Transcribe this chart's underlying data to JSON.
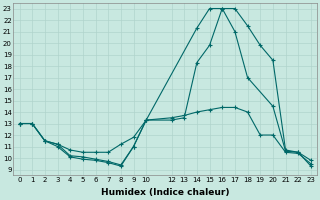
{
  "xlabel": "Humidex (Indice chaleur)",
  "background_color": "#c8e8e0",
  "grid_color": "#b0d4cc",
  "line_color": "#006868",
  "xlim": [
    -0.5,
    23.5
  ],
  "ylim": [
    8.5,
    23.5
  ],
  "yticks": [
    9,
    10,
    11,
    12,
    13,
    14,
    15,
    16,
    17,
    18,
    19,
    20,
    21,
    22,
    23
  ],
  "xtick_vals": [
    0,
    1,
    2,
    3,
    4,
    5,
    6,
    7,
    8,
    9,
    10,
    12,
    13,
    14,
    15,
    16,
    17,
    18,
    19,
    20,
    21,
    22,
    23
  ],
  "xtick_labels": [
    "0",
    "1",
    "2",
    "3",
    "4",
    "5",
    "6",
    "7",
    "8",
    "9",
    "10",
    "12",
    "13",
    "14",
    "15",
    "16",
    "17",
    "18",
    "19",
    "20",
    "21",
    "22",
    "23"
  ],
  "series": {
    "line1_peak": {
      "x": [
        0,
        1,
        2,
        3,
        4,
        5,
        6,
        7,
        8,
        9,
        10,
        14,
        15,
        16,
        17,
        18,
        20,
        21,
        22,
        23
      ],
      "y": [
        13.0,
        13.0,
        11.5,
        11.2,
        10.2,
        10.1,
        9.9,
        9.7,
        9.4,
        11.0,
        13.3,
        21.3,
        23.0,
        23.0,
        21.0,
        17.0,
        14.5,
        10.6,
        10.5,
        9.3
      ]
    },
    "line2_avg": {
      "x": [
        0,
        1,
        2,
        3,
        4,
        5,
        6,
        7,
        8,
        9,
        10,
        12,
        13,
        14,
        15,
        16,
        17,
        18,
        19,
        20,
        21,
        22,
        23
      ],
      "y": [
        13.0,
        13.0,
        11.5,
        11.2,
        10.7,
        10.5,
        10.5,
        10.5,
        11.2,
        11.8,
        13.3,
        13.3,
        13.5,
        18.3,
        19.8,
        23.0,
        23.0,
        21.5,
        19.8,
        18.5,
        10.7,
        10.5,
        9.8
      ]
    },
    "line3_min": {
      "x": [
        0,
        1,
        2,
        3,
        4,
        5,
        6,
        7,
        8,
        9,
        10,
        12,
        13,
        14,
        15,
        16,
        17,
        18,
        19,
        20,
        21,
        22,
        23
      ],
      "y": [
        13.0,
        13.0,
        11.5,
        11.0,
        10.1,
        9.9,
        9.8,
        9.6,
        9.3,
        11.0,
        13.3,
        13.5,
        13.7,
        14.0,
        14.2,
        14.4,
        14.4,
        14.0,
        12.0,
        12.0,
        10.5,
        10.4,
        9.5
      ]
    }
  }
}
